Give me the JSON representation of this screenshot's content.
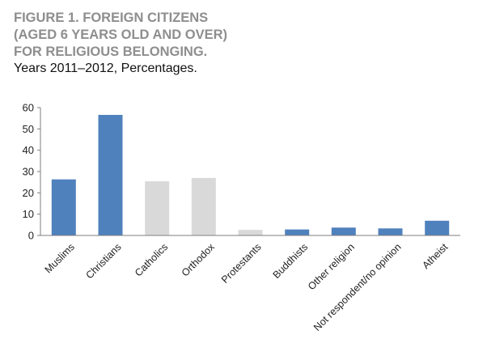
{
  "figure": {
    "title_lines": [
      "FIGURE 1. FOREIGN CITIZENS",
      "(AGED 6 YEARS OLD AND OVER)",
      "FOR RELIGIOUS BELONGING."
    ],
    "subtitle": "Years 2011–2012, Percentages."
  },
  "colors": {
    "blue": "#4f81bd",
    "grey": "#d9d9d9",
    "axis": "#7f7f7f",
    "title": "#8e8e8e"
  },
  "chart_data": {
    "type": "bar",
    "title": "FIGURE 1. FOREIGN CITIZENS (AGED 6 YEARS OLD AND OVER) FOR RELIGIOUS BELONGING.",
    "subtitle": "Years 2011–2012, Percentages.",
    "xlabel": "",
    "ylabel": "",
    "ylim": [
      0,
      60
    ],
    "yticks": [
      0,
      10,
      20,
      30,
      40,
      50,
      60
    ],
    "grid": false,
    "categories": [
      "Muslims",
      "Christians",
      "Catholics",
      "Orthodox",
      "Protestants",
      "Buddhists",
      "Other religion",
      "Not respondent/no opinion",
      "Atheist"
    ],
    "values": [
      26.3,
      56.6,
      25.4,
      27.0,
      2.6,
      2.8,
      3.7,
      3.3,
      6.9
    ],
    "bar_colors": [
      "blue",
      "blue",
      "grey",
      "grey",
      "grey",
      "blue",
      "blue",
      "blue",
      "blue"
    ]
  }
}
